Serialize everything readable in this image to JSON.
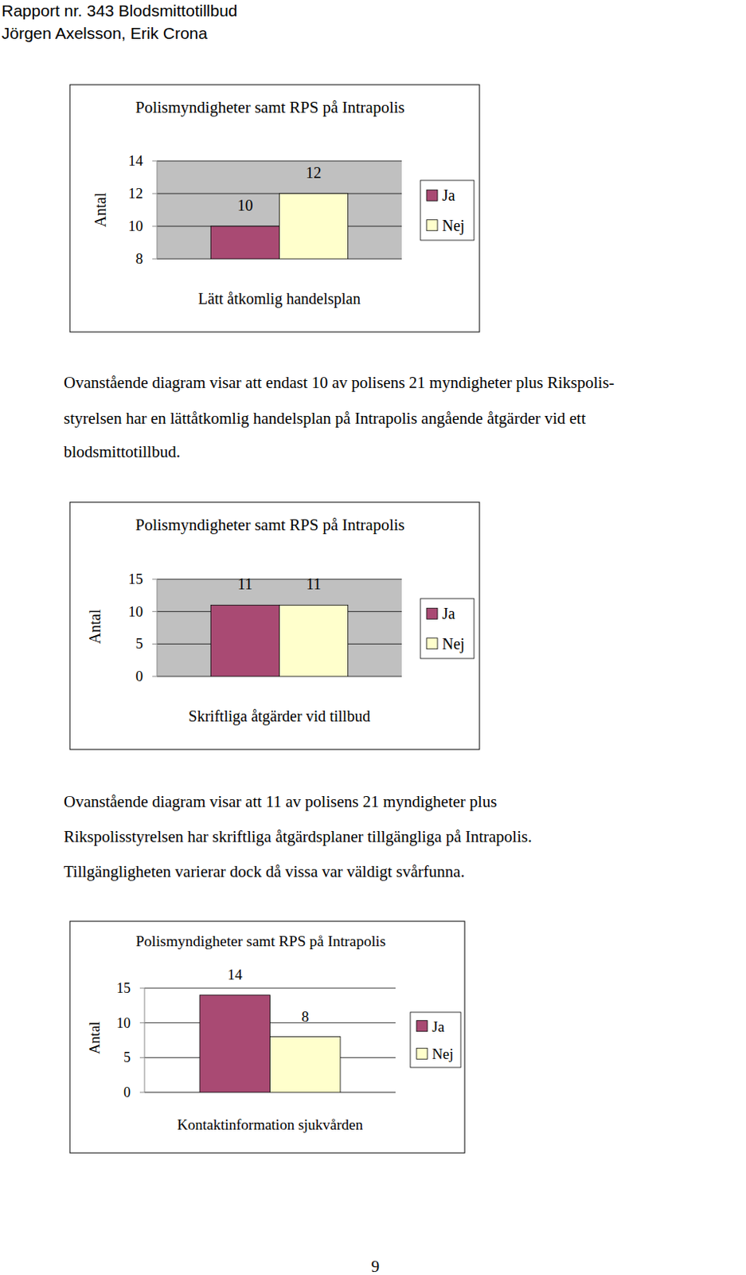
{
  "header": {
    "lines": [
      "Rapport nr. 343 Blodsmittotillbud",
      "Jörgen Axelsson, Erik Crona"
    ]
  },
  "chart_data": [
    {
      "type": "bar",
      "title": "Polismyndigheter samt RPS på Intrapolis",
      "y_label": "Antal",
      "categories": [
        "Lätt åtkomlig handelsplan"
      ],
      "series": [
        {
          "name": "Ja",
          "color": "#a94a73",
          "values": [
            10
          ]
        },
        {
          "name": "Nej",
          "color": "#ffffcc",
          "values": [
            12
          ]
        }
      ],
      "ylim": [
        8,
        14
      ],
      "yticks": [
        8,
        10,
        12,
        14
      ],
      "grid": true,
      "legend": "right",
      "data_labels": true
    },
    {
      "type": "bar",
      "title": "Polismyndigheter samt RPS på Intrapolis",
      "y_label": "Antal",
      "categories": [
        "Skriftliga åtgärder vid tillbud"
      ],
      "series": [
        {
          "name": "Ja",
          "color": "#a94a73",
          "values": [
            11
          ]
        },
        {
          "name": "Nej",
          "color": "#ffffcc",
          "values": [
            11
          ]
        }
      ],
      "ylim": [
        0,
        15
      ],
      "yticks": [
        0,
        5,
        10,
        15
      ],
      "grid": true,
      "legend": "right",
      "data_labels": true
    },
    {
      "type": "bar",
      "title": "Polismyndigheter samt RPS på Intrapolis",
      "y_label": "Antal",
      "categories": [
        "Kontaktinformation sjukvården"
      ],
      "series": [
        {
          "name": "Ja",
          "color": "#a94a73",
          "values": [
            14
          ]
        },
        {
          "name": "Nej",
          "color": "#ffffcc",
          "values": [
            8
          ]
        }
      ],
      "ylim": [
        0,
        15
      ],
      "yticks": [
        0,
        5,
        10,
        15
      ],
      "grid": true,
      "legend": "right",
      "data_labels": true
    }
  ],
  "paragraphs": [
    {
      "lines": [
        "Ovanstående diagram visar att endast 10 av polisens 21 myndigheter plus Rikspolis-",
        "styrelsen har en lättåtkomlig handelsplan på Intrapolis angående åtgärder vid ett",
        "blodsmittotillbud."
      ]
    },
    {
      "lines": [
        "Ovanstående diagram visar att 11 av polisens 21 myndigheter plus",
        "Rikspolisstyrelsen har skriftliga åtgärdsplaner tillgängliga på Intrapolis.",
        "Tillgängligheten varierar dock då vissa var väldigt svårfunna."
      ]
    }
  ],
  "page_number": "9"
}
